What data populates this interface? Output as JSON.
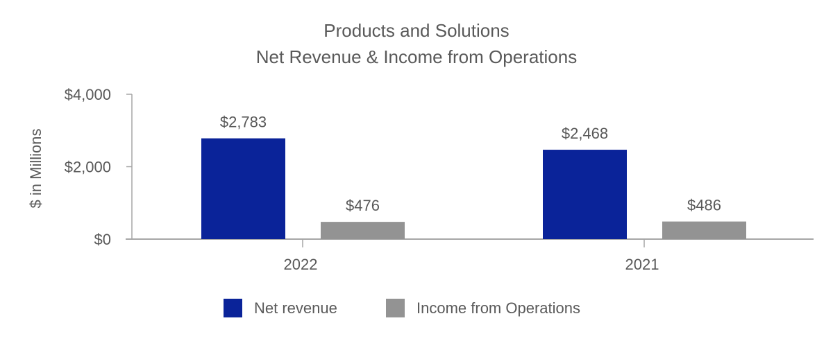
{
  "chart_data": {
    "type": "bar",
    "title": [
      "Products and Solutions",
      "Net Revenue & Income from Operations"
    ],
    "ylabel": "$ in Millions",
    "xlabel": "",
    "ylim": [
      0,
      4000
    ],
    "yticks": [
      0,
      2000,
      4000
    ],
    "ytick_labels": [
      "$0",
      "$2,000",
      "$4,000"
    ],
    "categories": [
      "2022",
      "2021"
    ],
    "series": [
      {
        "name": "Net revenue",
        "color": "#0A2399",
        "values": [
          2783,
          2468
        ],
        "labels": [
          "$2,783",
          "$2,468"
        ]
      },
      {
        "name": "Income from Operations",
        "color": "#939393",
        "values": [
          476,
          486
        ],
        "labels": [
          "$476",
          "$486"
        ]
      }
    ],
    "grid": false,
    "legend_position": "bottom"
  }
}
